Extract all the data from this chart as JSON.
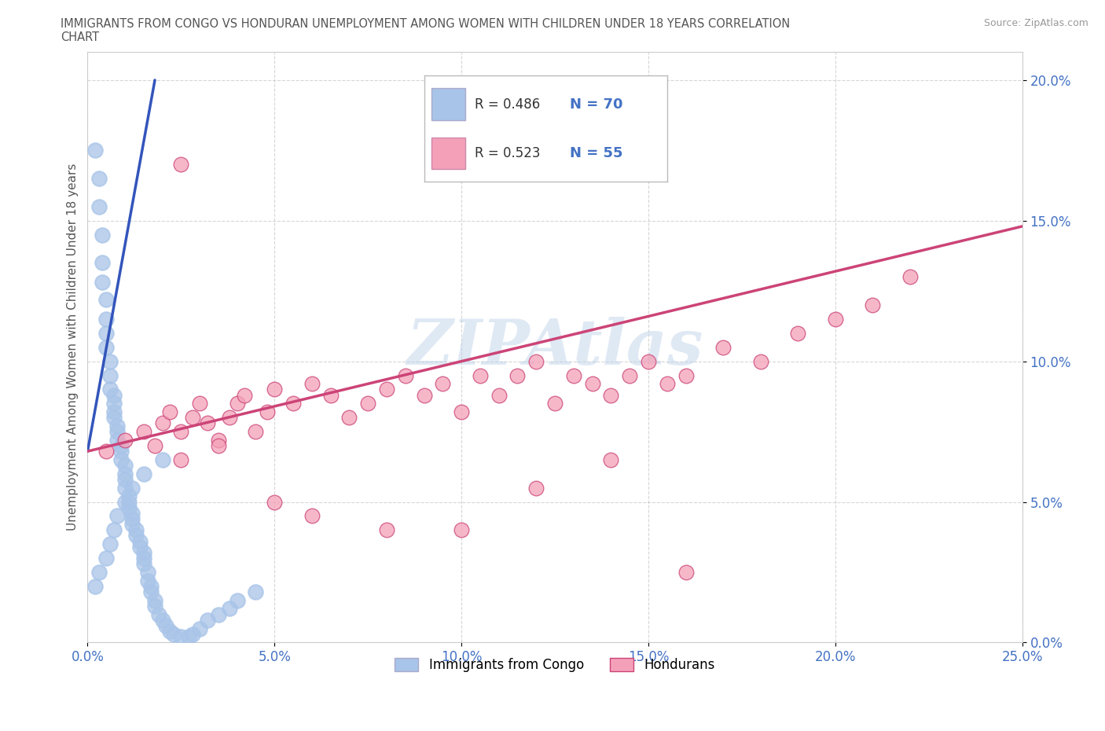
{
  "title_line1": "IMMIGRANTS FROM CONGO VS HONDURAN UNEMPLOYMENT AMONG WOMEN WITH CHILDREN UNDER 18 YEARS CORRELATION",
  "title_line2": "CHART",
  "source": "Source: ZipAtlas.com",
  "ylabel": "Unemployment Among Women with Children Under 18 years",
  "xlim": [
    0.0,
    0.25
  ],
  "ylim": [
    0.0,
    0.21
  ],
  "x_ticks": [
    0.0,
    0.05,
    0.1,
    0.15,
    0.2,
    0.25
  ],
  "x_tick_labels": [
    "0.0%",
    "5.0%",
    "10.0%",
    "15.0%",
    "20.0%",
    "25.0%"
  ],
  "y_ticks": [
    0.0,
    0.05,
    0.1,
    0.15,
    0.2
  ],
  "y_tick_labels": [
    "0.0%",
    "5.0%",
    "10.0%",
    "15.0%",
    "20.0%"
  ],
  "congo_R": 0.486,
  "congo_N": 70,
  "honduran_R": 0.523,
  "honduran_N": 55,
  "congo_scatter_color": "#a8c4e8",
  "congo_line_color": "#3355bb",
  "honduran_scatter_color": "#f4a0b8",
  "honduran_line_color": "#cc4477",
  "tick_color": "#4472c4",
  "legend_label_congo": "Immigrants from Congo",
  "legend_label_honduran": "Hondurans",
  "watermark": "ZIPAtlas",
  "grid_color": "#cccccc",
  "title_color": "#555555",
  "ylabel_color": "#555555",
  "source_color": "#999999",
  "congo_x": [
    0.002,
    0.003,
    0.003,
    0.004,
    0.004,
    0.004,
    0.005,
    0.005,
    0.005,
    0.005,
    0.006,
    0.006,
    0.006,
    0.007,
    0.007,
    0.007,
    0.007,
    0.008,
    0.008,
    0.008,
    0.009,
    0.009,
    0.009,
    0.01,
    0.01,
    0.01,
    0.01,
    0.011,
    0.011,
    0.011,
    0.012,
    0.012,
    0.012,
    0.013,
    0.013,
    0.014,
    0.014,
    0.015,
    0.015,
    0.015,
    0.016,
    0.016,
    0.017,
    0.017,
    0.018,
    0.018,
    0.019,
    0.02,
    0.021,
    0.022,
    0.023,
    0.025,
    0.027,
    0.028,
    0.03,
    0.032,
    0.035,
    0.038,
    0.04,
    0.045,
    0.002,
    0.003,
    0.005,
    0.006,
    0.007,
    0.008,
    0.01,
    0.012,
    0.015,
    0.02
  ],
  "congo_y": [
    0.175,
    0.165,
    0.155,
    0.145,
    0.135,
    0.128,
    0.122,
    0.115,
    0.11,
    0.105,
    0.1,
    0.095,
    0.09,
    0.088,
    0.085,
    0.082,
    0.08,
    0.077,
    0.075,
    0.072,
    0.07,
    0.068,
    0.065,
    0.063,
    0.06,
    0.058,
    0.055,
    0.052,
    0.05,
    0.048,
    0.046,
    0.044,
    0.042,
    0.04,
    0.038,
    0.036,
    0.034,
    0.032,
    0.03,
    0.028,
    0.025,
    0.022,
    0.02,
    0.018,
    0.015,
    0.013,
    0.01,
    0.008,
    0.006,
    0.004,
    0.003,
    0.002,
    0.002,
    0.003,
    0.005,
    0.008,
    0.01,
    0.012,
    0.015,
    0.018,
    0.02,
    0.025,
    0.03,
    0.035,
    0.04,
    0.045,
    0.05,
    0.055,
    0.06,
    0.065
  ],
  "honduran_x": [
    0.005,
    0.01,
    0.015,
    0.018,
    0.02,
    0.022,
    0.025,
    0.028,
    0.03,
    0.032,
    0.035,
    0.038,
    0.04,
    0.042,
    0.045,
    0.048,
    0.05,
    0.055,
    0.06,
    0.065,
    0.07,
    0.075,
    0.08,
    0.085,
    0.09,
    0.095,
    0.1,
    0.105,
    0.11,
    0.115,
    0.12,
    0.125,
    0.13,
    0.135,
    0.14,
    0.145,
    0.15,
    0.155,
    0.16,
    0.17,
    0.18,
    0.19,
    0.2,
    0.21,
    0.22,
    0.025,
    0.035,
    0.05,
    0.06,
    0.08,
    0.1,
    0.12,
    0.14,
    0.16,
    0.025
  ],
  "honduran_y": [
    0.068,
    0.072,
    0.075,
    0.07,
    0.078,
    0.082,
    0.075,
    0.08,
    0.085,
    0.078,
    0.072,
    0.08,
    0.085,
    0.088,
    0.075,
    0.082,
    0.09,
    0.085,
    0.092,
    0.088,
    0.08,
    0.085,
    0.09,
    0.095,
    0.088,
    0.092,
    0.082,
    0.095,
    0.088,
    0.095,
    0.1,
    0.085,
    0.095,
    0.092,
    0.088,
    0.095,
    0.1,
    0.092,
    0.095,
    0.105,
    0.1,
    0.11,
    0.115,
    0.12,
    0.13,
    0.065,
    0.07,
    0.05,
    0.045,
    0.04,
    0.04,
    0.055,
    0.065,
    0.025,
    0.17
  ],
  "congo_line_x": [
    0.0,
    0.018
  ],
  "congo_line_y": [
    0.068,
    0.2
  ],
  "honduran_line_x": [
    0.0,
    0.25
  ],
  "honduran_line_y": [
    0.068,
    0.148
  ]
}
